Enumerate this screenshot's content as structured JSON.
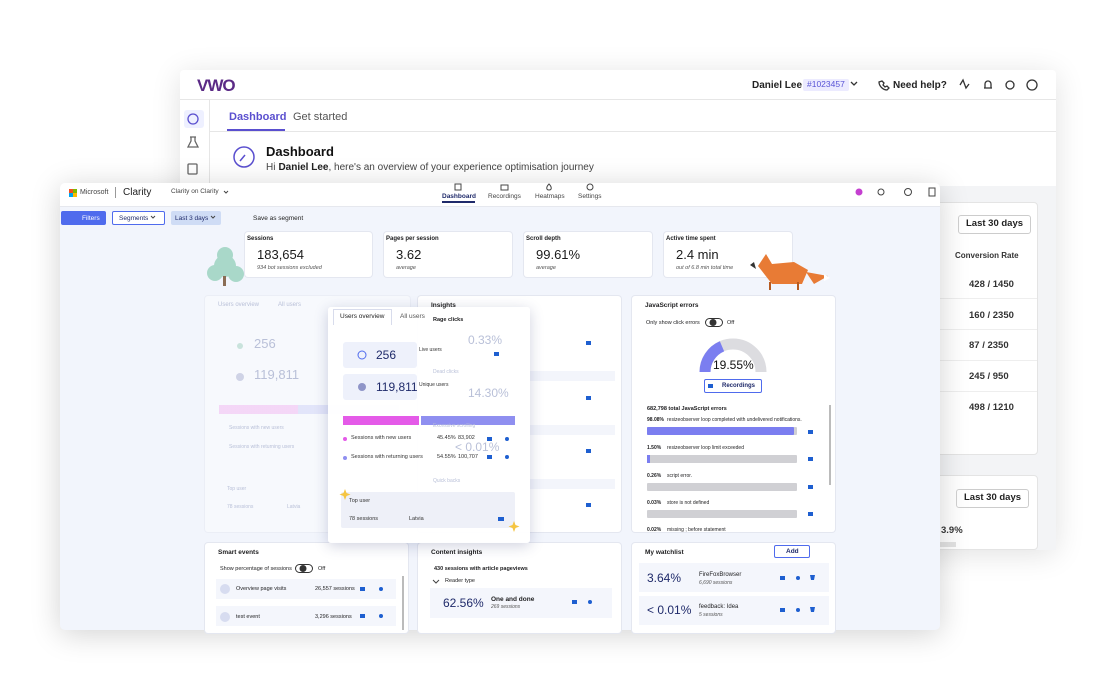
{
  "vwo": {
    "logo": "VWO",
    "user": "Daniel Lee",
    "account_id": "#1023457",
    "help": "Need help?",
    "tabs": [
      "Dashboard",
      "Get started"
    ],
    "heading": "Dashboard",
    "greeting": {
      "prefix": "Hi",
      "name": "Daniel Lee",
      "rest": ", here's an overview of your experience optimisation journey"
    },
    "table": {
      "range": "Last 30 days",
      "column": "Conversion Rate",
      "rows": [
        "428 / 1450",
        "160 / 2350",
        "87 / 2350",
        "245 / 950",
        "498 / 1210"
      ]
    },
    "card2": {
      "range": "Last 30 days",
      "value": "3.9%"
    }
  },
  "clarity": {
    "brand": "Microsoft",
    "product": "Clarity",
    "project": "Clarity on Clarity",
    "nav": [
      "Dashboard",
      "Recordings",
      "Heatmaps",
      "Settings"
    ],
    "toolbar": {
      "filters": "Filters",
      "segments": "Segments",
      "range": "Last 3 days",
      "save": "Save as segment"
    },
    "metrics": [
      {
        "label": "Sessions",
        "value": "183,654",
        "sub": "934 bot sessions excluded"
      },
      {
        "label": "Pages per session",
        "value": "3.62",
        "sub": "average"
      },
      {
        "label": "Scroll depth",
        "value": "99.61%",
        "sub": "average"
      },
      {
        "label": "Active time spent",
        "value": "2.4 min",
        "sub": "out of 6.8 min total time"
      }
    ],
    "users": {
      "tabs": [
        "Users overview",
        "All users"
      ],
      "live_value": "256",
      "live_label": "Live users",
      "unique_value": "119,811",
      "unique_label": "Unique users",
      "rows": [
        {
          "label": "Sessions with new users",
          "pct": "45.45%",
          "count": "83,902"
        },
        {
          "label": "Sessions with returning users",
          "pct": "54.55%",
          "count": "100,707"
        }
      ],
      "top_user": {
        "label": "Top user",
        "sessions": "78 sessions",
        "country": "Latvia"
      }
    },
    "insights": {
      "title": "Insights",
      "items": [
        {
          "label": "Rage clicks",
          "value": "0.33%"
        },
        {
          "label": "Dead clicks",
          "value": "14.30%"
        },
        {
          "label": "Excessive scrolling",
          "value": "< 0.01%"
        },
        {
          "label": "Quick backs"
        }
      ]
    },
    "js_errors": {
      "title": "JavaScript errors",
      "toggle_label": "Only show click errors",
      "toggle_state": "Off",
      "gauge": "19.55%",
      "button": "Recordings",
      "total": "682,798 total JavaScript errors",
      "errors": [
        {
          "pct": "98.08%",
          "message": "resizeobserver loop completed with undelivered notifications."
        },
        {
          "pct": "1.50%",
          "message": "resizeobserver loop limit exceeded"
        },
        {
          "pct": "0.26%",
          "message": "script error."
        },
        {
          "pct": "0.03%",
          "message": "store is not defined"
        },
        {
          "pct": "0.02%",
          "message": "missing ; before statement"
        }
      ]
    },
    "smart_events": {
      "title": "Smart events",
      "toggle_label": "Show percentage of sessions",
      "toggle_state": "Off",
      "events": [
        {
          "name": "Overview page visits",
          "sessions": "26,557 sessions"
        },
        {
          "name": "test event",
          "sessions": "3,296 sessions"
        }
      ]
    },
    "content_insights": {
      "title": "Content insights",
      "summary": "430 sessions with article pageviews",
      "group": "Reader type",
      "value": "62.56%",
      "label": "One and done",
      "sessions": "269 sessions"
    },
    "watchlist": {
      "title": "My watchlist",
      "add": "Add",
      "items": [
        {
          "value": "3.64%",
          "name": "FireFoxBrowser",
          "sessions": "6,690 sessions"
        },
        {
          "value": "< 0.01%",
          "name": "feedback: Idea",
          "sessions": "5 sessions"
        }
      ]
    }
  }
}
